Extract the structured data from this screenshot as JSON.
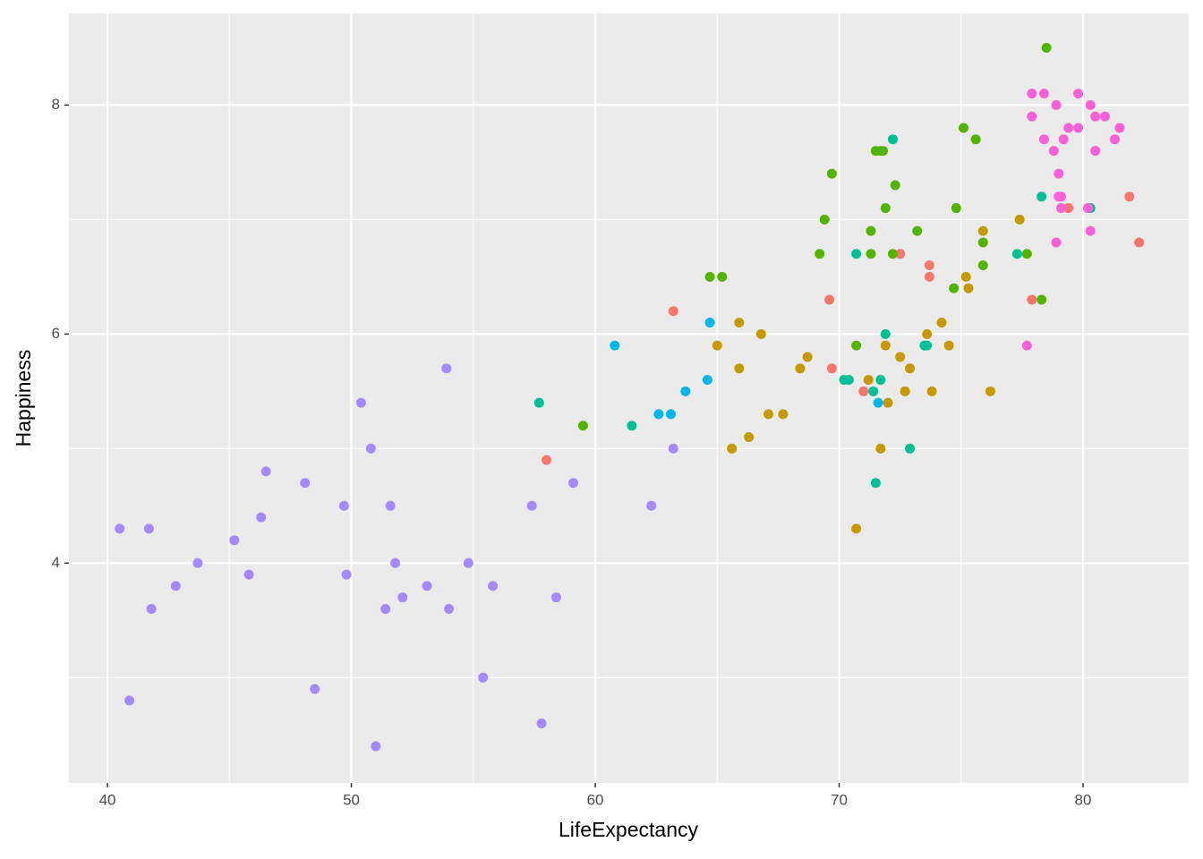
{
  "chart_data": {
    "type": "scatter",
    "x_label": "LifeExpectancy",
    "y_label": "Happiness",
    "xlim": [
      38.42,
      84.33
    ],
    "ylim": [
      2.08,
      8.8
    ],
    "xticks": [
      40,
      50,
      60,
      70,
      80
    ],
    "yticks": [
      4,
      6,
      8
    ],
    "grid": true,
    "series": [
      {
        "color": "#A58AFF",
        "x": [
          40.5,
          40.9,
          41.7,
          41.8,
          42.8,
          43.7,
          45.2,
          45.8,
          46.3,
          46.5,
          48.1,
          48.5,
          49.7,
          49.8,
          50.4,
          50.8,
          51.0,
          51.4,
          51.6,
          51.8,
          52.1,
          53.1,
          53.9,
          54.0,
          54.8,
          55.4,
          55.8,
          57.4,
          57.8,
          58.4,
          59.1,
          62.3,
          63.2
        ],
        "values": [
          4.3,
          2.8,
          4.3,
          3.6,
          3.8,
          4.0,
          4.2,
          3.9,
          4.4,
          4.8,
          4.7,
          2.9,
          4.5,
          3.9,
          5.4,
          5.0,
          2.4,
          3.6,
          4.5,
          4.0,
          3.7,
          3.8,
          5.7,
          3.6,
          4.0,
          3.0,
          3.8,
          4.5,
          2.6,
          3.7,
          4.7,
          4.5,
          5.0
        ]
      },
      {
        "color": "#F8766D",
        "x": [
          58.0,
          63.2,
          69.6,
          69.7,
          71.0,
          72.5,
          73.7,
          73.7,
          77.9,
          79.4,
          81.9,
          82.3
        ],
        "values": [
          4.9,
          6.2,
          6.3,
          5.7,
          5.5,
          6.7,
          6.6,
          6.5,
          6.3,
          7.1,
          7.2,
          6.8
        ]
      },
      {
        "color": "#C49A00",
        "x": [
          65.0,
          65.6,
          65.9,
          65.9,
          66.3,
          66.8,
          67.1,
          67.7,
          68.4,
          68.7,
          70.7,
          71.2,
          71.7,
          71.9,
          72.0,
          72.5,
          72.7,
          72.9,
          73.6,
          73.8,
          74.2,
          74.5,
          75.2,
          75.3,
          75.9,
          76.2,
          77.4
        ],
        "values": [
          5.9,
          5.0,
          6.1,
          5.7,
          5.1,
          6.0,
          5.3,
          5.3,
          5.7,
          5.8,
          4.3,
          5.6,
          5.0,
          5.9,
          5.4,
          5.8,
          5.5,
          5.7,
          6.0,
          5.5,
          6.1,
          5.9,
          6.5,
          6.4,
          6.9,
          5.5,
          7.0
        ]
      },
      {
        "color": "#53B400",
        "x": [
          59.5,
          64.7,
          65.2,
          69.2,
          69.4,
          69.7,
          70.7,
          71.3,
          71.3,
          71.5,
          71.7,
          71.8,
          71.9,
          72.2,
          72.3,
          73.2,
          74.7,
          74.8,
          75.1,
          75.6,
          75.9,
          75.9,
          77.7,
          78.3,
          78.5
        ],
        "values": [
          5.2,
          6.5,
          6.5,
          6.7,
          7.0,
          7.4,
          5.9,
          6.9,
          6.7,
          7.6,
          7.6,
          7.6,
          7.1,
          6.7,
          7.3,
          6.9,
          6.4,
          7.1,
          7.8,
          7.7,
          6.8,
          6.6,
          6.7,
          6.3,
          8.5
        ]
      },
      {
        "color": "#00C094",
        "x": [
          57.7,
          61.5,
          70.2,
          70.4,
          70.7,
          71.4,
          71.5,
          71.7,
          71.9,
          72.2,
          72.9,
          73.5,
          73.6,
          77.3,
          78.3,
          80.3
        ],
        "values": [
          5.4,
          5.2,
          5.6,
          5.6,
          6.7,
          5.5,
          4.7,
          5.6,
          6.0,
          7.7,
          5.0,
          5.9,
          5.9,
          6.7,
          7.2,
          7.1
        ]
      },
      {
        "color": "#00B6EB",
        "x": [
          60.8,
          62.6,
          63.1,
          63.7,
          64.6,
          64.7,
          71.6
        ],
        "values": [
          5.9,
          5.3,
          5.3,
          5.5,
          5.6,
          6.1,
          5.4
        ]
      },
      {
        "color": "#FB61D7",
        "x": [
          77.7,
          77.9,
          77.9,
          78.4,
          78.4,
          78.8,
          78.9,
          78.9,
          79.0,
          79.0,
          79.1,
          79.1,
          79.2,
          79.4,
          79.8,
          79.8,
          80.2,
          80.3,
          80.3,
          80.5,
          80.5,
          80.9,
          81.3,
          81.5
        ],
        "values": [
          5.9,
          8.1,
          7.9,
          8.1,
          7.7,
          7.6,
          8.0,
          6.8,
          7.4,
          7.2,
          7.2,
          7.1,
          7.7,
          7.8,
          8.1,
          7.8,
          7.1,
          8.0,
          6.9,
          7.9,
          7.6,
          7.9,
          7.7,
          7.8
        ]
      }
    ]
  }
}
